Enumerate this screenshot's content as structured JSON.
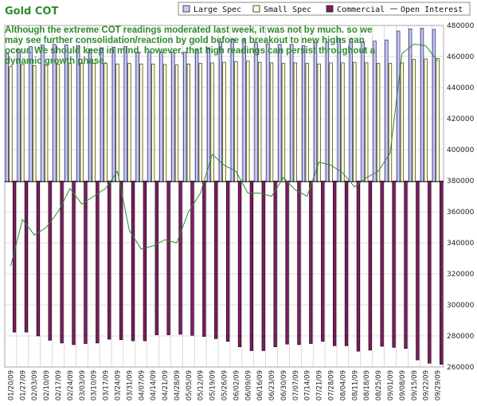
{
  "title": "Gold COT",
  "annotation": "Although the extreme COT readings moderated last week, it was not by much. so we may see further consolidation/reaction by gold before a breakout to new highs can occur. We should keep in mind. however, that high readings can persist throughout a dynamic growth phase.",
  "colors": {
    "large_spec": "#c8c8ff",
    "small_spec": "#ffffd6",
    "commercial": "#7a1f5c",
    "open_interest": "#2e8b2e",
    "grid": "#c0c0c0",
    "title": "#2e8b2e"
  },
  "chart_data": {
    "type": "bar",
    "title": "Gold COT",
    "categories": [
      "01/20/09",
      "01/27/09",
      "02/03/09",
      "02/10/09",
      "02/17/09",
      "02/24/09",
      "03/03/09",
      "03/10/09",
      "03/17/09",
      "03/24/09",
      "03/31/09",
      "04/07/09",
      "04/14/09",
      "04/21/09",
      "04/28/09",
      "05/05/09",
      "05/12/09",
      "05/19/09",
      "05/26/09",
      "06/02/09",
      "06/09/09",
      "06/16/09",
      "06/23/09",
      "06/30/09",
      "07/07/09",
      "07/14/09",
      "07/21/09",
      "07/28/09",
      "08/04/09",
      "08/11/09",
      "08/18/09",
      "08/25/09",
      "09/01/09",
      "09/08/09",
      "09/15/09",
      "09/22/09",
      "09/29/09"
    ],
    "series": [
      {
        "name": "Large Spec",
        "values": [
          230000,
          237000,
          242000,
          245000,
          246000,
          245000,
          244000,
          238000,
          240000,
          241000,
          242000,
          232000,
          232000,
          232000,
          232000,
          232000,
          236000,
          240000,
          251000,
          255000,
          256000,
          250000,
          247000,
          246000,
          246000,
          244000,
          249000,
          250000,
          257000,
          256000,
          251000,
          252000,
          254000,
          270000,
          274000,
          275000,
          273000
        ]
      },
      {
        "name": "Small Spec",
        "values": [
          206000,
          210000,
          208000,
          210000,
          211000,
          212000,
          212000,
          212000,
          212000,
          211000,
          212000,
          211000,
          211000,
          210000,
          209000,
          211000,
          212000,
          213000,
          214000,
          215000,
          216000,
          214000,
          213000,
          212000,
          213000,
          212000,
          211000,
          213000,
          213000,
          214000,
          213000,
          212000,
          212000,
          213000,
          219000,
          220000,
          221000
        ]
      },
      {
        "name": "Commercial",
        "values": [
          -276000,
          -276000,
          -283000,
          -291000,
          -296000,
          -299000,
          -297000,
          -296000,
          -289000,
          -290000,
          -292000,
          -292000,
          -281000,
          -281000,
          -280000,
          -282000,
          -284000,
          -288000,
          -293000,
          -303000,
          -310000,
          -310000,
          -303000,
          -298000,
          -299000,
          -297000,
          -293000,
          -301000,
          -301000,
          -311000,
          -309000,
          -302000,
          -304000,
          -306000,
          -327000,
          -333000,
          -335000
        ]
      },
      {
        "name": "Open Interest",
        "values": [
          325000,
          355000,
          345000,
          350000,
          360000,
          375000,
          365000,
          370000,
          375000,
          386000,
          348000,
          336000,
          338000,
          342000,
          340000,
          360000,
          372000,
          397000,
          390000,
          386000,
          372000,
          372000,
          370000,
          382000,
          374000,
          370000,
          392000,
          390000,
          385000,
          376000,
          382000,
          386000,
          398000,
          462000,
          468000,
          467000,
          457000
        ]
      }
    ],
    "y_left": {
      "ticks": [
        "",
        "",
        "",
        "",
        "",
        ""
      ],
      "min": -340000,
      "max": 280000
    },
    "y_right": {
      "ticks": [
        "480000",
        "460000",
        "440000",
        "420000",
        "400000",
        "380000",
        "360000",
        "340000",
        "320000",
        "300000",
        "280000",
        "260000"
      ],
      "min": 260000,
      "max": 480000
    },
    "legend": [
      "Large Spec",
      "Small Spec",
      "Commercial",
      "Open Interest"
    ],
    "legend_position": "top-right",
    "grid": true
  }
}
